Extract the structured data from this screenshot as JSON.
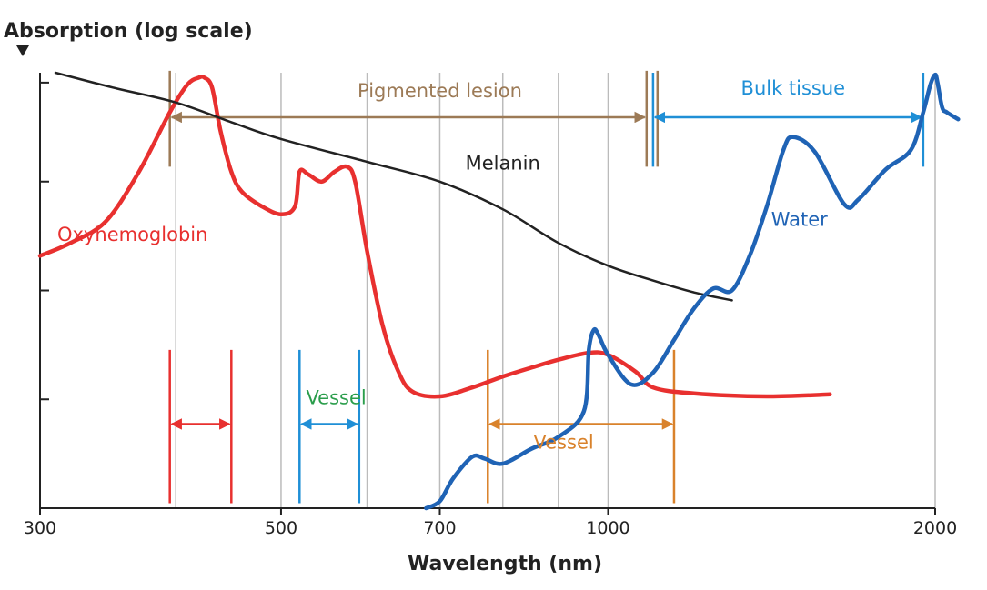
{
  "chart_data": {
    "type": "line",
    "ylabel": "Absorption (log scale)",
    "xlabel": "Wavelength (nm)",
    "xscale": "log",
    "xlim": [
      300,
      2000
    ],
    "ylim": [
      0,
      4.4
    ],
    "x_ticks": [
      {
        "value": 300,
        "label": "300"
      },
      {
        "value": 500,
        "label": "500"
      },
      {
        "value": 700,
        "label": "700"
      },
      {
        "value": 1000,
        "label": "1000"
      },
      {
        "value": 2000,
        "label": "2000"
      }
    ],
    "x_gridlines": [
      400,
      500,
      600,
      700,
      800,
      900,
      1000,
      2000
    ],
    "y_ticks": [
      1.1,
      2.2,
      3.3,
      4.3
    ],
    "grid": true,
    "colors": {
      "oxyhemoglobin": "#e8302f",
      "melanin": "#222222",
      "water": "#1f63b5",
      "pigmented_lesion": "#9c7a56",
      "bulk_tissue": "#1f8fd6",
      "vessel_blue": "#1f8fd6",
      "vessel_orange": "#d9822b",
      "vessel_green_text": "#2a9d4b",
      "grid": "#bbbbbb",
      "axis": "#222222"
    },
    "series": [
      {
        "name": "Oxyhemoglobin",
        "color": "#e8302f",
        "points": [
          [
            300,
            2.55
          ],
          [
            320,
            2.68
          ],
          [
            345,
            2.9
          ],
          [
            370,
            3.4
          ],
          [
            395,
            4.0
          ],
          [
            410,
            4.28
          ],
          [
            420,
            4.35
          ],
          [
            425,
            4.35
          ],
          [
            432,
            4.25
          ],
          [
            440,
            3.8
          ],
          [
            450,
            3.4
          ],
          [
            460,
            3.2
          ],
          [
            480,
            3.05
          ],
          [
            500,
            2.97
          ],
          [
            515,
            3.05
          ],
          [
            520,
            3.4
          ],
          [
            530,
            3.37
          ],
          [
            545,
            3.3
          ],
          [
            560,
            3.4
          ],
          [
            575,
            3.45
          ],
          [
            585,
            3.3
          ],
          [
            600,
            2.6
          ],
          [
            620,
            1.85
          ],
          [
            640,
            1.4
          ],
          [
            660,
            1.18
          ],
          [
            700,
            1.13
          ],
          [
            750,
            1.22
          ],
          [
            800,
            1.33
          ],
          [
            850,
            1.42
          ],
          [
            900,
            1.5
          ],
          [
            960,
            1.57
          ],
          [
            1000,
            1.55
          ],
          [
            1060,
            1.38
          ],
          [
            1100,
            1.22
          ],
          [
            1200,
            1.16
          ],
          [
            1400,
            1.13
          ],
          [
            1600,
            1.15
          ]
        ]
      },
      {
        "name": "Melanin",
        "color": "#222222",
        "points": [
          [
            310,
            4.4
          ],
          [
            350,
            4.25
          ],
          [
            400,
            4.1
          ],
          [
            450,
            3.9
          ],
          [
            500,
            3.73
          ],
          [
            600,
            3.5
          ],
          [
            700,
            3.3
          ],
          [
            800,
            3.02
          ],
          [
            900,
            2.68
          ],
          [
            1000,
            2.45
          ],
          [
            1100,
            2.3
          ],
          [
            1200,
            2.18
          ],
          [
            1300,
            2.1
          ]
        ]
      },
      {
        "name": "Water",
        "color": "#1f63b5",
        "points": [
          [
            680,
            0.0
          ],
          [
            700,
            0.07
          ],
          [
            720,
            0.3
          ],
          [
            750,
            0.52
          ],
          [
            770,
            0.5
          ],
          [
            800,
            0.45
          ],
          [
            850,
            0.6
          ],
          [
            900,
            0.72
          ],
          [
            950,
            0.98
          ],
          [
            960,
            1.6
          ],
          [
            970,
            1.8
          ],
          [
            980,
            1.75
          ],
          [
            1000,
            1.55
          ],
          [
            1050,
            1.25
          ],
          [
            1100,
            1.37
          ],
          [
            1150,
            1.7
          ],
          [
            1200,
            2.02
          ],
          [
            1250,
            2.22
          ],
          [
            1300,
            2.2
          ],
          [
            1350,
            2.55
          ],
          [
            1400,
            3.05
          ],
          [
            1450,
            3.62
          ],
          [
            1480,
            3.75
          ],
          [
            1550,
            3.6
          ],
          [
            1650,
            3.07
          ],
          [
            1700,
            3.12
          ],
          [
            1800,
            3.42
          ],
          [
            1900,
            3.62
          ],
          [
            1950,
            4.0
          ],
          [
            1980,
            4.28
          ],
          [
            2000,
            4.38
          ],
          [
            2010,
            4.3
          ],
          [
            2030,
            4.05
          ],
          [
            2050,
            4.0
          ],
          [
            2100,
            3.93
          ]
        ]
      }
    ],
    "annotations": [
      {
        "text": "Oxyhemoglobin",
        "x": 365,
        "y": 2.7,
        "color": "#e8302f"
      },
      {
        "text": "Melanin",
        "x": 800,
        "y": 3.42,
        "color": "#222222"
      },
      {
        "text": "Water",
        "x": 1500,
        "y": 2.85,
        "color": "#1f63b5"
      },
      {
        "text": "Pigmented lesion",
        "x": 700,
        "y": 4.15,
        "color": "#9c7a56"
      },
      {
        "text": "Bulk tissue",
        "x": 1480,
        "y": 4.18,
        "color": "#1f8fd6"
      },
      {
        "text": "Vessel",
        "x": 562,
        "y": 1.05,
        "color": "#2a9d4b"
      },
      {
        "text": "Vessel",
        "x": 910,
        "y": 0.6,
        "color": "#d9822b"
      }
    ],
    "ranges": [
      {
        "id": "pigmented-lesion",
        "start": 395,
        "end": 1085,
        "y": 3.95,
        "bar_low": 3.45,
        "bar_high": 4.42,
        "color": "#9c7a56",
        "direction": "both",
        "double_end": true
      },
      {
        "id": "bulk-tissue",
        "start": 1100,
        "end": 1950,
        "y": 3.95,
        "bar_low": 3.45,
        "bar_high": 4.4,
        "color": "#1f8fd6",
        "direction": "both"
      },
      {
        "id": "red-range",
        "start": 395,
        "end": 450,
        "y": 0.85,
        "bar_low": 0.05,
        "bar_high": 1.6,
        "color": "#e8302f",
        "direction": "both"
      },
      {
        "id": "vessel-blue",
        "start": 520,
        "end": 590,
        "y": 0.85,
        "bar_low": 0.05,
        "bar_high": 1.6,
        "color": "#1f8fd6",
        "direction": "both"
      },
      {
        "id": "vessel-orange",
        "start": 775,
        "end": 1150,
        "y": 0.85,
        "bar_low": 0.05,
        "bar_high": 1.6,
        "color": "#d9822b",
        "direction": "both"
      }
    ]
  }
}
